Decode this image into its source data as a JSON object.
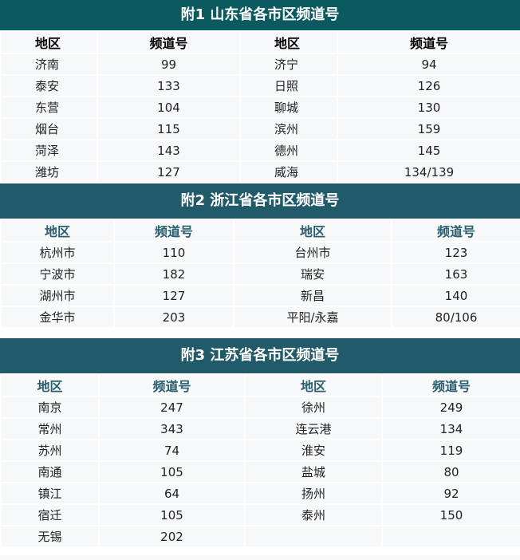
{
  "tables": [
    {
      "title": "附1 山东省各市区频道号",
      "headers": [
        "地区",
        "频道号",
        "地区",
        "频道号"
      ],
      "rows": [
        [
          "济南",
          "99",
          "济宁",
          "94"
        ],
        [
          "泰安",
          "133",
          "日照",
          "126"
        ],
        [
          "东营",
          "104",
          "聊城",
          "130"
        ],
        [
          "烟台",
          "115",
          "滨州",
          "159"
        ],
        [
          "菏泽",
          "143",
          "德州",
          "145"
        ],
        [
          "潍坊",
          "127",
          "威海",
          "134/139"
        ]
      ]
    },
    {
      "title": "附2 浙江省各市区频道号",
      "headers": [
        "地区",
        "频道号",
        "地区",
        "频道号"
      ],
      "rows": [
        [
          "杭州市",
          "110",
          "台州市",
          "123"
        ],
        [
          "宁波市",
          "182",
          "瑞安",
          "163"
        ],
        [
          "湖州市",
          "127",
          "新昌",
          "140"
        ],
        [
          "金华市",
          "203",
          "平阳/永嘉",
          "80/106"
        ]
      ]
    },
    {
      "title": "附3 江苏省各市区频道号",
      "headers": [
        "地区",
        "频道号",
        "地区",
        "频道号"
      ],
      "rows": [
        [
          "南京",
          "247",
          "徐州",
          "249"
        ],
        [
          "常州",
          "343",
          "连云港",
          "134"
        ],
        [
          "苏州",
          "74",
          "淮安",
          "119"
        ],
        [
          "南通",
          "105",
          "盐城",
          "80"
        ],
        [
          "镇江",
          "64",
          "扬州",
          "92"
        ],
        [
          "宿迁",
          "105",
          "泰州",
          "150"
        ],
        [
          "无锡",
          "202",
          "",
          ""
        ]
      ]
    }
  ]
}
